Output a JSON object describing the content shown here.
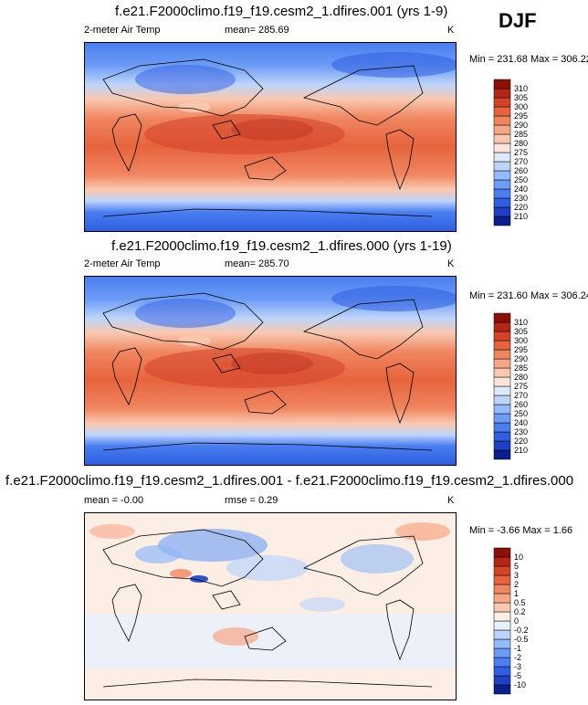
{
  "season": "DJF",
  "chart_data": [
    {
      "type": "heatmap",
      "title": "f.e21.F2000climo.f19_f19.cesm2_1.dfires.001 (yrs 1-9)",
      "variable": "2-meter Air Temp",
      "mean_text": "mean= 285.69",
      "units": "K",
      "minmax_text": "Min = 231.68 Max = 306.22",
      "min": 231.68,
      "max": 306.22,
      "mean": 285.69,
      "colorbar": {
        "levels": [
          "210",
          "220",
          "230",
          "240",
          "250",
          "260",
          "270",
          "275",
          "280",
          "285",
          "290",
          "295",
          "300",
          "305",
          "310"
        ],
        "colors": [
          "#0a1f8c",
          "#1f3fc4",
          "#2f5ee0",
          "#4a7ef0",
          "#6c9cf6",
          "#93baf9",
          "#bdd4fb",
          "#dde9fb",
          "#fbe6dc",
          "#f9c8b0",
          "#f6a787",
          "#f08660",
          "#e6633c",
          "#d4422a",
          "#b52516",
          "#8c0f0a"
        ]
      }
    },
    {
      "type": "heatmap",
      "title": "f.e21.F2000climo.f19_f19.cesm2_1.dfires.000 (yrs 1-19)",
      "variable": "2-meter Air Temp",
      "mean_text": "mean= 285.70",
      "units": "K",
      "minmax_text": "Min = 231.60 Max = 306.24",
      "min": 231.6,
      "max": 306.24,
      "mean": 285.7,
      "colorbar": {
        "levels": [
          "210",
          "220",
          "230",
          "240",
          "250",
          "260",
          "270",
          "275",
          "280",
          "285",
          "290",
          "295",
          "300",
          "305",
          "310"
        ],
        "colors": [
          "#0a1f8c",
          "#1f3fc4",
          "#2f5ee0",
          "#4a7ef0",
          "#6c9cf6",
          "#93baf9",
          "#bdd4fb",
          "#dde9fb",
          "#fbe6dc",
          "#f9c8b0",
          "#f6a787",
          "#f08660",
          "#e6633c",
          "#d4422a",
          "#b52516",
          "#8c0f0a"
        ]
      }
    },
    {
      "type": "heatmap",
      "title": "f.e21.F2000climo.f19_f19.cesm2_1.dfires.001 - f.e21.F2000climo.f19_f19.cesm2_1.dfires.000",
      "mean_text": "mean =  -0.00",
      "rmse_text": "rmse =   0.29",
      "units": "K",
      "minmax_text": "Min =  -3.66 Max =   1.66",
      "min": -3.66,
      "max": 1.66,
      "mean": -0.0,
      "rmse": 0.29,
      "colorbar": {
        "levels": [
          "-10",
          "-5",
          "-3",
          "-2",
          "-1",
          "-0.5",
          "-0.2",
          "0",
          "0.2",
          "0.5",
          "1",
          "2",
          "3",
          "5",
          "10"
        ],
        "colors": [
          "#0a1f8c",
          "#1f3fc4",
          "#2f5ee0",
          "#4a7ef0",
          "#6c9cf6",
          "#93baf9",
          "#bdd4fb",
          "#e8f0fc",
          "#fcede5",
          "#f9c8b0",
          "#f6a787",
          "#f08660",
          "#e6633c",
          "#d4422a",
          "#b52516",
          "#8c0f0a"
        ]
      }
    }
  ]
}
